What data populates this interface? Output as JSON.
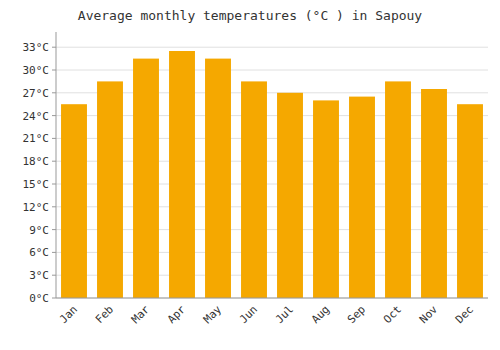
{
  "chart_data": {
    "type": "bar",
    "title": "Average monthly temperatures (°C ) in Sapouy",
    "categories": [
      "Jan",
      "Feb",
      "Mar",
      "Apr",
      "May",
      "Jun",
      "Jul",
      "Aug",
      "Sep",
      "Oct",
      "Nov",
      "Dec"
    ],
    "values": [
      25.5,
      28.5,
      31.5,
      32.5,
      31.5,
      28.5,
      27.0,
      26.0,
      26.5,
      28.5,
      27.5,
      25.5
    ],
    "color": "#F5A800",
    "ylim": [
      0,
      35
    ],
    "yticks": [
      {
        "value": 0,
        "label": "0°C"
      },
      {
        "value": 3,
        "label": "3°C"
      },
      {
        "value": 6,
        "label": "6°C"
      },
      {
        "value": 9,
        "label": "9°C"
      },
      {
        "value": 12,
        "label": "12°C"
      },
      {
        "value": 15,
        "label": "15°C"
      },
      {
        "value": 18,
        "label": "18°C"
      },
      {
        "value": 21,
        "label": "21°C"
      },
      {
        "value": 24,
        "label": "24°C"
      },
      {
        "value": 27,
        "label": "27°C"
      },
      {
        "value": 30,
        "label": "30°C"
      },
      {
        "value": 33,
        "label": "33°C"
      }
    ],
    "grid": true
  }
}
